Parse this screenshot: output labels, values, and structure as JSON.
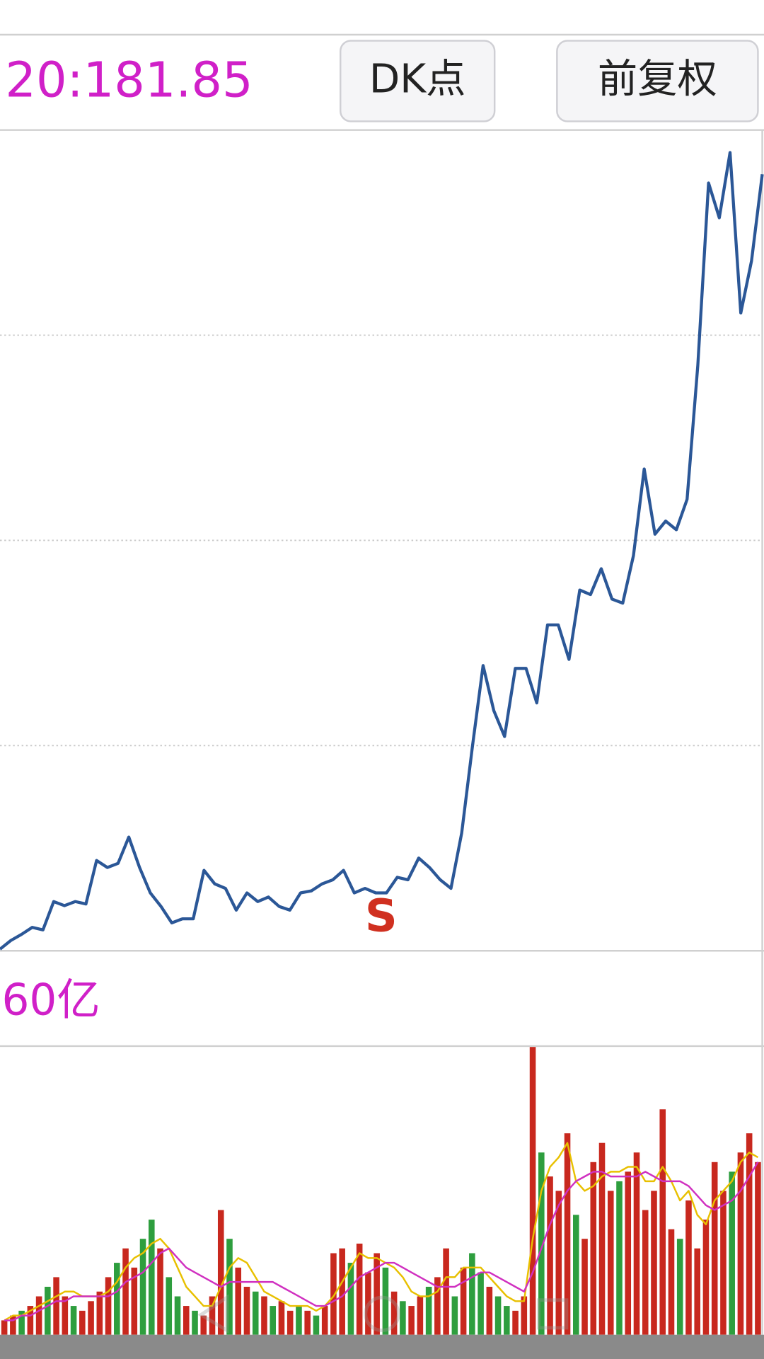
{
  "header": {
    "ma_text": "20:181.85",
    "buttons": [
      "DK点",
      "前复权"
    ]
  },
  "chart_data": [
    {
      "type": "line",
      "annotation": "S",
      "ylim": [
        0,
        200
      ],
      "yticks": [
        50,
        100,
        150
      ],
      "grid": true,
      "series": [
        {
          "color": "#2b5797",
          "values": [
            0.4,
            2.5,
            4.0,
            5.7,
            5.1,
            12.0,
            11.0,
            12.0,
            11.4,
            22.0,
            20.3,
            21.3,
            27.7,
            20.3,
            14.1,
            10.8,
            6.8,
            7.8,
            7.8,
            19.6,
            16.3,
            15.2,
            9.9,
            14.1,
            12.0,
            13.1,
            10.8,
            9.9,
            14.1,
            14.6,
            16.3,
            17.3,
            19.6,
            14.1,
            15.2,
            14.1,
            14.1,
            17.9,
            17.3,
            22.6,
            20.3,
            17.3,
            15.2,
            28.7,
            49.8,
            69.5,
            58.5,
            52.2,
            68.8,
            68.8,
            60.4,
            79.4,
            79.4,
            71.0,
            87.9,
            86.8,
            93.1,
            85.7,
            84.7,
            96.3,
            117.4,
            101.5,
            104.7,
            102.6,
            110.0,
            142.7,
            187.1,
            178.6,
            194.5,
            155.4,
            168.1,
            189.2
          ]
        }
      ]
    },
    {
      "type": "bar",
      "label": "60亿",
      "ylim": [
        0,
        60
      ],
      "values": [
        3,
        4,
        5,
        6,
        8,
        10,
        12,
        8,
        6,
        5,
        7,
        9,
        12,
        15,
        18,
        14,
        20,
        24,
        18,
        12,
        8,
        6,
        5,
        4,
        8,
        26,
        20,
        14,
        10,
        9,
        8,
        6,
        7,
        5,
        6,
        5,
        4,
        6,
        17,
        18,
        15,
        19,
        13,
        17,
        14,
        9,
        7,
        6,
        8,
        10,
        12,
        18,
        8,
        14,
        17,
        13,
        10,
        8,
        6,
        5,
        8,
        60,
        38,
        33,
        30,
        42,
        25,
        20,
        36,
        40,
        30,
        32,
        34,
        38,
        26,
        30,
        47,
        22,
        20,
        28,
        18,
        24,
        36,
        30,
        34,
        38,
        42,
        36
      ],
      "colors": [
        "#c8281e",
        "#c8281e",
        "#2e9e3e",
        "#c8281e",
        "#c8281e",
        "#2e9e3e",
        "#c8281e",
        "#c8281e",
        "#2e9e3e",
        "#c8281e",
        "#c8281e",
        "#c8281e",
        "#c8281e",
        "#2e9e3e",
        "#c8281e",
        "#c8281e",
        "#2e9e3e",
        "#2e9e3e",
        "#c8281e",
        "#2e9e3e",
        "#2e9e3e",
        "#c8281e",
        "#2e9e3e",
        "#c8281e",
        "#c8281e",
        "#c8281e",
        "#2e9e3e",
        "#c8281e",
        "#c8281e",
        "#2e9e3e",
        "#c8281e",
        "#2e9e3e",
        "#c8281e",
        "#c8281e",
        "#2e9e3e",
        "#c8281e",
        "#2e9e3e",
        "#c8281e",
        "#c8281e",
        "#c8281e",
        "#2e9e3e",
        "#c8281e",
        "#c8281e",
        "#c8281e",
        "#2e9e3e",
        "#c8281e",
        "#2e9e3e",
        "#c8281e",
        "#c8281e",
        "#2e9e3e",
        "#c8281e",
        "#c8281e",
        "#2e9e3e",
        "#c8281e",
        "#2e9e3e",
        "#2e9e3e",
        "#c8281e",
        "#2e9e3e",
        "#2e9e3e",
        "#c8281e",
        "#c8281e",
        "#c8281e",
        "#2e9e3e",
        "#c8281e",
        "#c8281e",
        "#c8281e",
        "#2e9e3e",
        "#c8281e",
        "#c8281e",
        "#c8281e",
        "#c8281e",
        "#2e9e3e",
        "#c8281e",
        "#c8281e",
        "#c8281e",
        "#c8281e",
        "#c8281e",
        "#c8281e",
        "#2e9e3e",
        "#c8281e",
        "#c8281e",
        "#c8281e",
        "#c8281e",
        "#c8281e",
        "#2e9e3e",
        "#c8281e",
        "#c8281e",
        "#c8281e"
      ],
      "series": [
        {
          "color": "#e8c000",
          "values": [
            3,
            4,
            4,
            5,
            6,
            7,
            8,
            9,
            9,
            8,
            8,
            8,
            9,
            11,
            14,
            16,
            17,
            19,
            20,
            18,
            14,
            10,
            8,
            6,
            6,
            10,
            14,
            16,
            15,
            12,
            9,
            8,
            7,
            6,
            6,
            6,
            5,
            6,
            8,
            11,
            14,
            17,
            16,
            16,
            15,
            14,
            12,
            9,
            8,
            8,
            9,
            12,
            12,
            14,
            14,
            14,
            12,
            10,
            8,
            7,
            7,
            20,
            30,
            35,
            37,
            40,
            32,
            30,
            31,
            33,
            34,
            34,
            35,
            35,
            32,
            32,
            35,
            32,
            28,
            30,
            25,
            23,
            28,
            30,
            32,
            36,
            38,
            37
          ]
        },
        {
          "color": "#d030c0",
          "values": [
            3,
            3,
            4,
            4,
            5,
            6,
            7,
            7,
            8,
            8,
            8,
            8,
            8,
            9,
            11,
            12,
            13,
            15,
            17,
            18,
            16,
            14,
            13,
            12,
            11,
            10,
            11,
            11,
            11,
            11,
            11,
            11,
            10,
            9,
            8,
            7,
            6,
            6,
            7,
            8,
            10,
            12,
            13,
            14,
            15,
            15,
            14,
            13,
            12,
            11,
            10,
            10,
            10,
            11,
            12,
            13,
            13,
            12,
            11,
            10,
            9,
            13,
            18,
            23,
            27,
            30,
            32,
            33,
            34,
            34,
            33,
            33,
            33,
            33,
            34,
            33,
            32,
            32,
            32,
            31,
            29,
            27,
            26,
            27,
            28,
            30,
            33,
            36
          ]
        }
      ]
    }
  ]
}
